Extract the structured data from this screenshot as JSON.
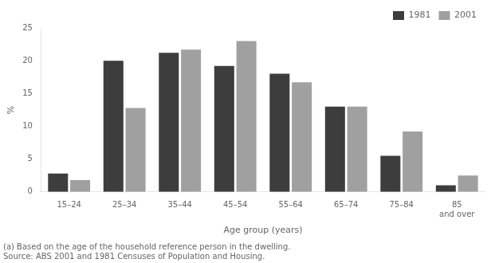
{
  "chart_data": {
    "type": "bar",
    "categories": [
      "15–24",
      "25–34",
      "35–44",
      "45–54",
      "55–64",
      "65–74",
      "75–84",
      "85\nand over"
    ],
    "series": [
      {
        "name": "1981",
        "color": "#3d3d3d",
        "values": [
          2.8,
          20.0,
          21.2,
          19.2,
          18.0,
          13.0,
          5.5,
          1.0
        ]
      },
      {
        "name": "2001",
        "color": "#a0a0a0",
        "values": [
          1.8,
          12.8,
          21.7,
          23.0,
          16.7,
          13.0,
          9.2,
          2.5
        ]
      }
    ],
    "ylabel": "%",
    "xlabel": "Age group (years)",
    "ylim": [
      0,
      25
    ],
    "yticks": [
      0,
      5,
      10,
      15,
      20,
      25
    ],
    "grid": false,
    "legend": "upper right",
    "annotations": [
      "(a) Based on the age of the household reference person in the dwelling.",
      "Source: ABS 2001 and 1981 Censuses of Population and Housing."
    ]
  }
}
